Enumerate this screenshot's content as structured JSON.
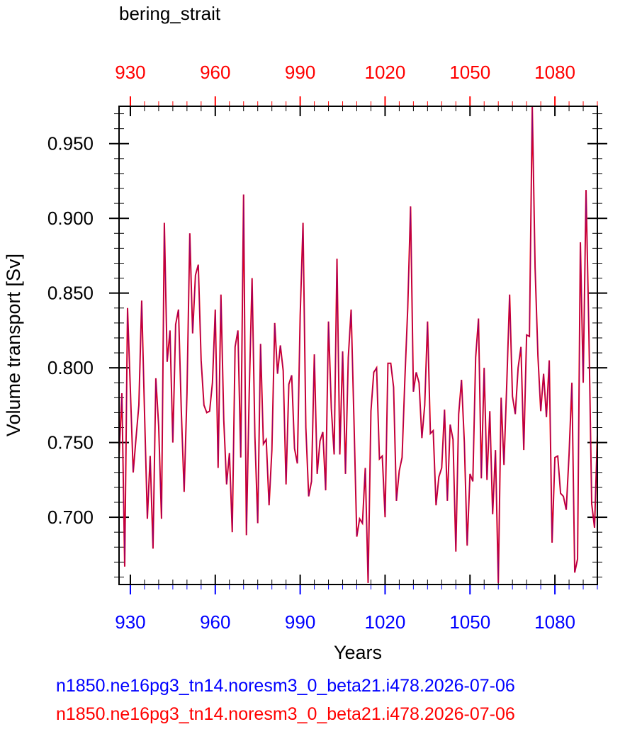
{
  "title": "bering_strait",
  "chart_data": {
    "type": "line",
    "xlabel": "Years",
    "ylabel": "Volume transport [Sv]",
    "xlim": [
      926,
      1095
    ],
    "ylim": [
      0.655,
      0.975
    ],
    "x_ticks": [
      930,
      960,
      990,
      1020,
      1050,
      1080
    ],
    "y_ticks": [
      0.7,
      0.75,
      0.8,
      0.85,
      0.9,
      0.95
    ],
    "y_tick_labels": [
      "0.700",
      "0.750",
      "0.800",
      "0.850",
      "0.900",
      "0.950"
    ],
    "x_tick_color_bottom": "#0000ff",
    "x_tick_color_top": "#ff0000",
    "grid": false,
    "x": [
      926,
      927,
      928,
      929,
      930,
      931,
      932,
      933,
      934,
      935,
      936,
      937,
      938,
      939,
      940,
      941,
      942,
      943,
      944,
      945,
      946,
      947,
      948,
      949,
      950,
      951,
      952,
      953,
      954,
      955,
      956,
      957,
      958,
      959,
      960,
      961,
      962,
      963,
      964,
      965,
      966,
      967,
      968,
      969,
      970,
      971,
      972,
      973,
      974,
      975,
      976,
      977,
      978,
      979,
      980,
      981,
      982,
      983,
      984,
      985,
      986,
      987,
      988,
      989,
      990,
      991,
      992,
      993,
      994,
      995,
      996,
      997,
      998,
      999,
      1000,
      1001,
      1002,
      1003,
      1004,
      1005,
      1006,
      1007,
      1008,
      1009,
      1010,
      1011,
      1012,
      1013,
      1014,
      1015,
      1016,
      1017,
      1018,
      1019,
      1020,
      1021,
      1022,
      1023,
      1024,
      1025,
      1026,
      1027,
      1028,
      1029,
      1030,
      1031,
      1032,
      1033,
      1034,
      1035,
      1036,
      1037,
      1038,
      1039,
      1040,
      1041,
      1042,
      1043,
      1044,
      1045,
      1046,
      1047,
      1048,
      1049,
      1050,
      1051,
      1052,
      1053,
      1054,
      1055,
      1056,
      1057,
      1058,
      1059,
      1060,
      1061,
      1062,
      1063,
      1064,
      1065,
      1066,
      1067,
      1068,
      1069,
      1070,
      1071,
      1072,
      1073,
      1074,
      1075,
      1076,
      1077,
      1078,
      1079,
      1080,
      1081,
      1082,
      1083,
      1084,
      1085,
      1086,
      1087,
      1088,
      1089,
      1090,
      1091,
      1092,
      1093,
      1094,
      1095
    ],
    "series": [
      {
        "color": "#ff0000",
        "values": [
          0.74,
          0.783,
          0.667,
          0.84,
          0.785,
          0.73,
          0.753,
          0.775,
          0.845,
          0.77,
          0.699,
          0.741,
          0.679,
          0.793,
          0.761,
          0.699,
          0.897,
          0.804,
          0.825,
          0.75,
          0.829,
          0.839,
          0.771,
          0.717,
          0.783,
          0.89,
          0.823,
          0.862,
          0.869,
          0.805,
          0.775,
          0.77,
          0.771,
          0.79,
          0.839,
          0.733,
          0.849,
          0.765,
          0.722,
          0.743,
          0.69,
          0.814,
          0.825,
          0.74,
          0.916,
          0.688,
          0.784,
          0.86,
          0.754,
          0.696,
          0.816,
          0.749,
          0.752,
          0.708,
          0.745,
          0.83,
          0.796,
          0.815,
          0.798,
          0.722,
          0.789,
          0.795,
          0.746,
          0.736,
          0.835,
          0.897,
          0.76,
          0.714,
          0.724,
          0.809,
          0.729,
          0.751,
          0.757,
          0.718,
          0.831,
          0.773,
          0.742,
          0.873,
          0.742,
          0.811,
          0.729,
          0.807,
          0.839,
          0.765,
          0.687,
          0.699,
          0.696,
          0.733,
          0.656,
          0.771,
          0.797,
          0.8,
          0.739,
          0.741,
          0.7,
          0.803,
          0.803,
          0.787,
          0.711,
          0.731,
          0.74,
          0.793,
          0.84,
          0.908,
          0.784,
          0.797,
          0.79,
          0.753,
          0.775,
          0.831,
          0.756,
          0.758,
          0.708,
          0.727,
          0.733,
          0.772,
          0.711,
          0.762,
          0.752,
          0.677,
          0.769,
          0.792,
          0.75,
          0.681,
          0.729,
          0.724,
          0.807,
          0.833,
          0.726,
          0.8,
          0.725,
          0.771,
          0.702,
          0.745,
          0.656,
          0.78,
          0.735,
          0.79,
          0.849,
          0.781,
          0.769,
          0.8,
          0.814,
          0.745,
          0.822,
          0.821,
          0.975,
          0.867,
          0.808,
          0.771,
          0.796,
          0.767,
          0.805,
          0.683,
          0.74,
          0.741,
          0.716,
          0.714,
          0.705,
          0.742,
          0.79,
          0.663,
          0.672,
          0.884,
          0.79,
          0.919,
          0.824,
          0.709,
          0.693,
          0.755
        ]
      },
      {
        "color": "#0000ff",
        "values": [
          0.74,
          0.783,
          0.667,
          0.84,
          0.785,
          0.73,
          0.753,
          0.775,
          0.845,
          0.77,
          0.699,
          0.741,
          0.679,
          0.793,
          0.761,
          0.699,
          0.897,
          0.804,
          0.825,
          0.75,
          0.829,
          0.839,
          0.771,
          0.717,
          0.783,
          0.89,
          0.823,
          0.862,
          0.869,
          0.805,
          0.775,
          0.77,
          0.771,
          0.79,
          0.839,
          0.733,
          0.849,
          0.765,
          0.722,
          0.743,
          0.69,
          0.814,
          0.825,
          0.74,
          0.916,
          0.688,
          0.784,
          0.86,
          0.754,
          0.696,
          0.816,
          0.749,
          0.752,
          0.708,
          0.745,
          0.83,
          0.796,
          0.815,
          0.798,
          0.722,
          0.789,
          0.795,
          0.746,
          0.736,
          0.835,
          0.897,
          0.76,
          0.714,
          0.724,
          0.809,
          0.729,
          0.751,
          0.757,
          0.718,
          0.831,
          0.773,
          0.742,
          0.873,
          0.742,
          0.811,
          0.729,
          0.807,
          0.839,
          0.765,
          0.687,
          0.699,
          0.696,
          0.733,
          0.656,
          0.771,
          0.797,
          0.8,
          0.739,
          0.741,
          0.7,
          0.803,
          0.803,
          0.787,
          0.711,
          0.731,
          0.74,
          0.793,
          0.84,
          0.908,
          0.784,
          0.797,
          0.79,
          0.753,
          0.775,
          0.831,
          0.756,
          0.758,
          0.708,
          0.727,
          0.733,
          0.772,
          0.711,
          0.762,
          0.752,
          0.677,
          0.769,
          0.792,
          0.75,
          0.681,
          0.729,
          0.724,
          0.807,
          0.833,
          0.726,
          0.8,
          0.725,
          0.771,
          0.702,
          0.745,
          0.656,
          0.78,
          0.735,
          0.79,
          0.849,
          0.781,
          0.769,
          0.8,
          0.814,
          0.745,
          0.822,
          0.821,
          0.975,
          0.867,
          0.808,
          0.771,
          0.796,
          0.767,
          0.805,
          0.683,
          0.74,
          0.741,
          0.716,
          0.714,
          0.705,
          0.742,
          0.79,
          0.663,
          0.672,
          0.884,
          0.79,
          0.919,
          0.824,
          0.709,
          0.693,
          0.755
        ]
      }
    ]
  },
  "legend": [
    {
      "label": "n1850.ne16pg3_tn14.noresm3_0_beta21.i478.2026-07-06",
      "color": "#0000ff"
    },
    {
      "label": "n1850.ne16pg3_tn14.noresm3_0_beta21.i478.2026-07-06",
      "color": "#ff0000"
    }
  ]
}
